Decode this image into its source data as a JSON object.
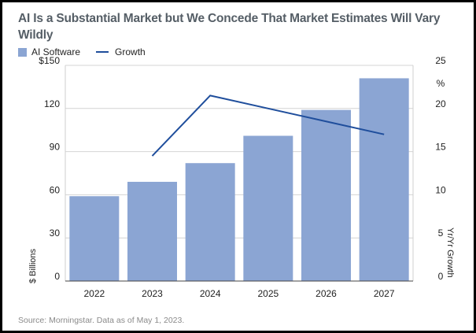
{
  "chart_data": {
    "type": "bar",
    "title": "AI Is a Substantial Market but We Concede That Market Estimates Will Vary Wildly",
    "categories": [
      "2022",
      "2023",
      "2024",
      "2025",
      "2026",
      "2027"
    ],
    "series": [
      {
        "name": "AI Software",
        "type": "bar",
        "axis": "left",
        "color": "#8ba5d3",
        "values": [
          59,
          69,
          82,
          101,
          119,
          141
        ]
      },
      {
        "name": "Growth",
        "type": "line",
        "axis": "right",
        "color": "#1f4e9c",
        "values": [
          null,
          14.5,
          21.5,
          20,
          18.5,
          17
        ]
      }
    ],
    "y_left": {
      "label": "$ Billions",
      "ylim": [
        0,
        150
      ],
      "ticks": [
        0,
        30,
        60,
        90,
        120,
        150
      ],
      "tick_labels": [
        "0",
        "30",
        "60",
        "90",
        "120",
        "$150"
      ]
    },
    "y_right": {
      "label": "Yr/Yr Growth",
      "unit": "%",
      "ylim": [
        0,
        25
      ],
      "ticks": [
        0,
        5,
        10,
        15,
        20,
        25
      ],
      "tick_labels": [
        "0",
        "5",
        "10",
        "15",
        "20",
        "25"
      ]
    },
    "grid": "horizontal",
    "legend": "top-left",
    "source": "Source: Morningstar. Data as of May 1, 2023."
  }
}
